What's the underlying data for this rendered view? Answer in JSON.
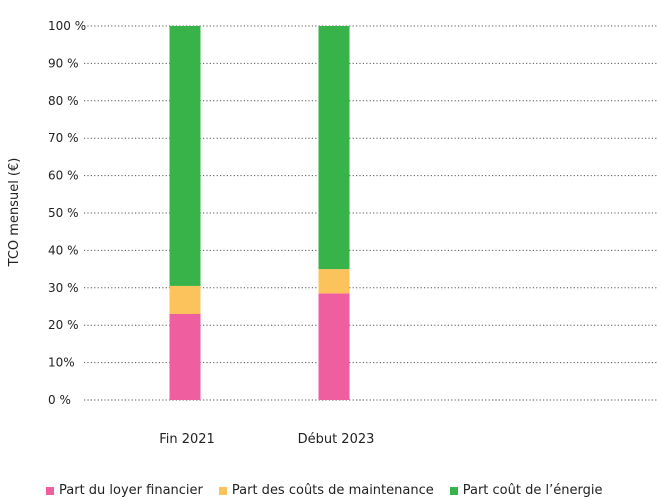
{
  "chart_data": {
    "type": "bar",
    "stacked": true,
    "title": "",
    "xlabel": "",
    "ylabel": "TCO mensuel (€)",
    "ylim": [
      0,
      100
    ],
    "grid": true,
    "legend_position": "bottom",
    "y_tick_labels": [
      "0 %",
      "10%",
      "20 %",
      "30 %",
      "40 %",
      "50 %",
      "60 %",
      "70 %",
      "80 %",
      "90 %",
      "100 %"
    ],
    "categories": [
      "Fin 2021",
      "Début 2023"
    ],
    "series": [
      {
        "name": "Part du loyer financier",
        "color": "#ef5fa0",
        "values": [
          23,
          28.5
        ]
      },
      {
        "name": "Part des coûts de maintenance",
        "color": "#fcc35c",
        "values": [
          7.5,
          6.5
        ]
      },
      {
        "name": "Part coût de l’énergie",
        "color": "#38b349",
        "values": [
          69.5,
          65
        ]
      }
    ]
  }
}
